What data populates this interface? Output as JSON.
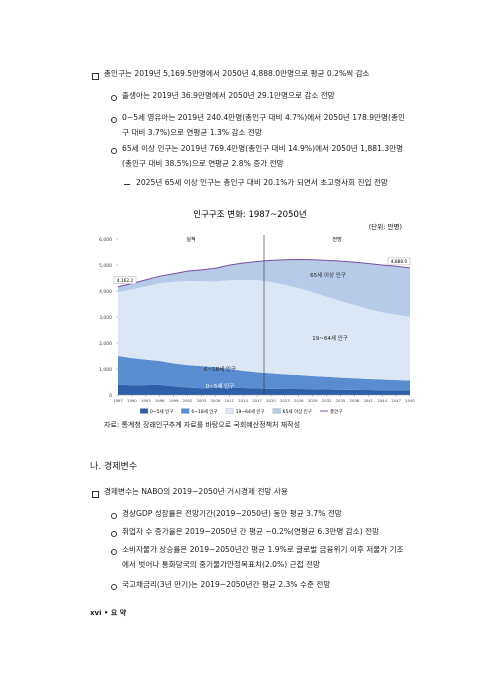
{
  "summary": {
    "heading": "총인구는 2019년 5,169.5만명에서 2050년 4,888.0만명으로 평균 0.2%씩 감소",
    "items": [
      "출생아는 2019년 36.9만명에서 2050년 29.1만명으로 감소 전망",
      "0~5세 영유아는 2019년 240.4만명(총인구 대비 4.7%)에서 2050년 178.9만명(총인구 대비 3.7%)으로 연평균 1.3% 감소 전망",
      "65세 이상 인구는 2019년 769.4만명(총인구 대비 14.9%)에서 2050년 1,881.3만명(총인구 대비 38.5%)으로 연평균 2.8% 증가 전망"
    ],
    "subitem": "2025년 65세 이상 인구는 총인구 대비 20.1%가 되면서 초고령사회 진입 전망"
  },
  "chart_data": {
    "type": "stacked_area",
    "title": "인구구조 변화: 1987~2050년",
    "unit": "(단위: 만명)",
    "x": [
      1987,
      1990,
      1993,
      1996,
      1999,
      2002,
      2005,
      2008,
      2011,
      2014,
      2017,
      2020,
      2023,
      2026,
      2029,
      2032,
      2035,
      2038,
      2041,
      2044,
      2047,
      2050
    ],
    "xlim": [
      1987,
      2050
    ],
    "xticks": [
      1987,
      1990,
      1993,
      1996,
      1999,
      2002,
      2005,
      2008,
      2011,
      2014,
      2017,
      2020,
      2023,
      2026,
      2029,
      2032,
      2035,
      2038,
      2041,
      2044,
      2047,
      2050
    ],
    "ylim": [
      0,
      6000
    ],
    "yticks": [
      0,
      {
        "value": 1000,
        "label": "1,000"
      },
      {
        "value": 2000,
        "label": "2,000"
      },
      {
        "value": 3000,
        "label": "3,000"
      },
      {
        "value": 4000,
        "label": "4,000"
      },
      {
        "value": 5000,
        "label": "5,000"
      },
      {
        "value": 6000,
        "label": "6,000"
      }
    ],
    "divider_x": 2018.5,
    "period_labels": [
      "실적",
      "전망"
    ],
    "series": [
      {
        "name": "0~5세 인구",
        "color": "#2f5fa6",
        "values": [
          400,
          370,
          380,
          390,
          330,
          290,
          260,
          270,
          280,
          270,
          250,
          240,
          230,
          230,
          220,
          210,
          200,
          195,
          190,
          185,
          182,
          178.9
        ]
      },
      {
        "name": "6~18세 인구",
        "color": "#5a8cd0",
        "values": [
          1100,
          1050,
          980,
          920,
          880,
          860,
          850,
          800,
          720,
          660,
          620,
          590,
          560,
          540,
          510,
          490,
          470,
          450,
          430,
          410,
          395,
          380
        ]
      },
      {
        "name": "19~64세 인구",
        "color": "#dce7f5",
        "values": [
          2452.2,
          2642,
          2819,
          2990,
          3142,
          3234,
          3264,
          3295,
          3414,
          3485,
          3546,
          3518,
          3450,
          3340,
          3220,
          3080,
          2950,
          2815,
          2690,
          2585,
          2513,
          2447.8
        ]
      },
      {
        "name": "65세 이상 인구",
        "color": "#b7cbe8",
        "values": [
          210,
          225,
          250,
          270,
          310,
          380,
          440,
          510,
          580,
          660,
          720,
          830,
          960,
          1100,
          1250,
          1400,
          1530,
          1650,
          1750,
          1820,
          1860,
          1881.3
        ]
      }
    ],
    "total": {
      "name": "총인구",
      "color": "#7b4f9e",
      "values": [
        4162.2,
        4287,
        4429,
        4570,
        4662,
        4764,
        4814,
        4875,
        4994,
        5075,
        5136,
        5178,
        5200,
        5210,
        5200,
        5180,
        5150,
        5110,
        5060,
        5000,
        4950,
        4888.0
      ],
      "value_labels": [
        "4,162.2",
        null,
        null,
        null,
        null,
        null,
        null,
        null,
        null,
        null,
        null,
        null,
        null,
        null,
        null,
        null,
        null,
        null,
        null,
        null,
        null,
        "4,888.0"
      ]
    },
    "area_labels": [
      "65세 이상 인구",
      "19~64세 인구",
      "6~18세 인구",
      "0~5세 인구"
    ],
    "source": "자료: 통계청 장래인구추계 자료를 바탕으로 국회예산정책처 재작성"
  },
  "section": {
    "title": "나. 경제변수",
    "heading": "경제변수는 NABO의 2019~2050년 거시경제 전망 사용",
    "items": [
      "경상GDP 성장률은 전망기간(2019~2050년) 동안 평균 3.7% 전망",
      "취업자 수 증가율은 2019~2050년 간 평균 −0.2%(연평균 6.3만명 감소) 전망",
      "소비자물가 상승률은 2019~2050년간 평균 1.9%로 글로벌 금융위기 이후 저물가 기조에서 벗어나 통화당국의 중기물가안정목표치(2.0%) 근접 전망",
      "국고채금리(3년 만기)는 2019~2050년간 평균 2.3% 수준 전망"
    ]
  },
  "footer": "xvi • 요 약"
}
